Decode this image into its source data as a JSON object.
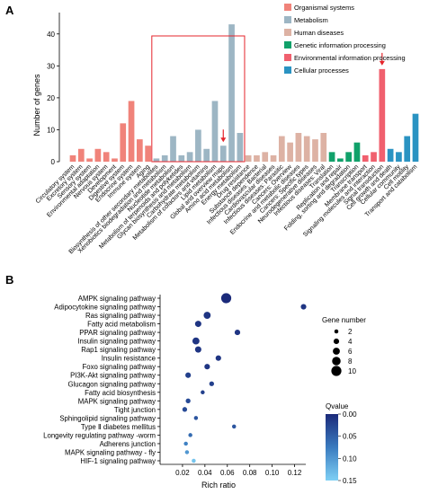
{
  "panels": {
    "a_label": "A",
    "b_label": "B"
  },
  "chart_data": [
    {
      "type": "bar",
      "panel": "A",
      "ylabel": "Number of genes",
      "ylim": [
        0,
        45
      ],
      "yticks": [
        0,
        10,
        20,
        30,
        40
      ],
      "grid": false,
      "legend_position": "top-right",
      "series": [
        {
          "name": "Organismal systems",
          "color": "#f0837a"
        },
        {
          "name": "Metabolism",
          "color": "#9db6c4"
        },
        {
          "name": "Human diseases",
          "color": "#ddb2a4"
        },
        {
          "name": "Genetic information processing",
          "color": "#11a16a"
        },
        {
          "name": "Environmental information processing",
          "color": "#f0606e"
        },
        {
          "name": "Cellular processes",
          "color": "#2a93c2"
        }
      ],
      "categories": [
        "Circulatory system",
        "Excretory system",
        "Sensory system",
        "Environmental adaptation",
        "Nervous system",
        "Development",
        "Digestive system",
        "Endocrine system",
        "Immune system",
        "Aging",
        "Biosynthesis of other secondary metabolites",
        "Xenobiotics biodegradation and metabolism",
        "Nucleotide metabolism",
        "Metabolism of terpenoids and polyketides",
        "Glycan biosynthesis and metabolism",
        "Carbohydrate metabolism",
        "Metabolism of cofactors and vitamins",
        "Lipid metabolism",
        "Global and overview maps",
        "Amino acid metabolism",
        "Energy metabolism",
        "Drug resistance",
        "Substance dependence",
        "Infectious diseases: Bacterial",
        "Cardiovascular diseases",
        "Infectious diseases: Parasitic",
        "Cancers: Overview",
        "Endocrine and metabolic diseases",
        "Cancers: Specific types",
        "Neurodegenerative diseases",
        "Infectious diseases: Viral",
        "Translation",
        "Replication and repair",
        "Folding, sorting and degradation",
        "Transcription",
        "Membrane transport",
        "Signaling molecules and interaction",
        "Signal transduction",
        "Cell growth and death",
        "Cellular community",
        "Cell motility",
        "Transport and catabolism"
      ],
      "groups": [
        0,
        0,
        0,
        0,
        0,
        0,
        0,
        0,
        0,
        0,
        1,
        1,
        1,
        1,
        1,
        1,
        1,
        1,
        1,
        1,
        1,
        2,
        2,
        2,
        2,
        2,
        2,
        2,
        2,
        2,
        2,
        3,
        3,
        3,
        3,
        4,
        4,
        4,
        5,
        5,
        5,
        5
      ],
      "values": [
        2,
        4,
        1,
        4,
        3,
        1,
        12,
        19,
        7,
        5,
        1,
        2,
        8,
        2,
        3,
        10,
        4,
        19,
        5,
        43,
        9,
        2,
        2,
        3,
        2,
        8,
        6,
        9,
        8,
        7,
        9,
        3,
        1,
        3,
        6,
        2,
        3,
        29,
        4,
        3,
        8,
        15
      ],
      "annotations": [
        {
          "type": "highlight-box",
          "category_span": [
            "Biosynthesis of other secondary metabolites",
            "Energy metabolism"
          ],
          "color": "#e5242b"
        },
        {
          "type": "arrow",
          "category": "Global and overview maps",
          "color": "#e5242b"
        },
        {
          "type": "arrow",
          "category": "Signal transduction",
          "color": "#e5242b"
        }
      ]
    },
    {
      "type": "scatter",
      "panel": "B",
      "xlabel": "Rich ratio",
      "xlim": [
        0.0,
        0.13
      ],
      "xticks": [
        "0.02",
        "0.04",
        "0.06",
        "0.08",
        "0.10",
        "0.12"
      ],
      "size_legend_title": "Gene number",
      "size_values": [
        "2",
        "4",
        "6",
        "8",
        "10"
      ],
      "color_legend_title": "Qvalue",
      "color_ticks": [
        "0.00",
        "0.05",
        "0.10",
        "0.15"
      ],
      "color_range": [
        0.0,
        0.15
      ],
      "points": [
        {
          "label": "AMPK signaling pathway",
          "x": 0.059,
          "size": 10,
          "q": 0.0
        },
        {
          "label": "Adipocytokine signaling pathway",
          "x": 0.128,
          "size": 4,
          "q": 0.01
        },
        {
          "label": "Ras signaling pathway",
          "x": 0.042,
          "size": 6,
          "q": 0.01
        },
        {
          "label": "Fatty acid metabolism",
          "x": 0.034,
          "size": 5,
          "q": 0.01
        },
        {
          "label": "PPAR signaling pathway",
          "x": 0.069,
          "size": 4,
          "q": 0.01
        },
        {
          "label": "Insulin signaling pathway",
          "x": 0.032,
          "size": 6,
          "q": 0.01
        },
        {
          "label": "Rap1 signaling pathway",
          "x": 0.034,
          "size": 5,
          "q": 0.01
        },
        {
          "label": "Insulin resistance",
          "x": 0.052,
          "size": 4,
          "q": 0.01
        },
        {
          "label": "Foxo signaling pathway",
          "x": 0.042,
          "size": 4,
          "q": 0.01
        },
        {
          "label": "PI3K-Akt signaling pathway",
          "x": 0.025,
          "size": 4,
          "q": 0.02
        },
        {
          "label": "Glucagon signaling pathway",
          "x": 0.046,
          "size": 3,
          "q": 0.02
        },
        {
          "label": "Fatty acid biosynthesis",
          "x": 0.038,
          "size": 2,
          "q": 0.02
        },
        {
          "label": "MAPK signaling pathway",
          "x": 0.025,
          "size": 3,
          "q": 0.03
        },
        {
          "label": "Tight junction",
          "x": 0.022,
          "size": 3,
          "q": 0.03
        },
        {
          "label": "Sphingolipid signaling pathway",
          "x": 0.032,
          "size": 2,
          "q": 0.04
        },
        {
          "label": "Type Ⅱ diabetes mellitus",
          "x": 0.066,
          "size": 2,
          "q": 0.04
        },
        {
          "label": "Longevity regulating pathway -worm",
          "x": 0.027,
          "size": 2,
          "q": 0.06
        },
        {
          "label": "Adherens junction",
          "x": 0.023,
          "size": 2,
          "q": 0.08
        },
        {
          "label": "MAPK signaling pathway - fly",
          "x": 0.024,
          "size": 2,
          "q": 0.1
        },
        {
          "label": "HIF-1 signaling pathway",
          "x": 0.03,
          "size": 2,
          "q": 0.14
        }
      ]
    }
  ]
}
